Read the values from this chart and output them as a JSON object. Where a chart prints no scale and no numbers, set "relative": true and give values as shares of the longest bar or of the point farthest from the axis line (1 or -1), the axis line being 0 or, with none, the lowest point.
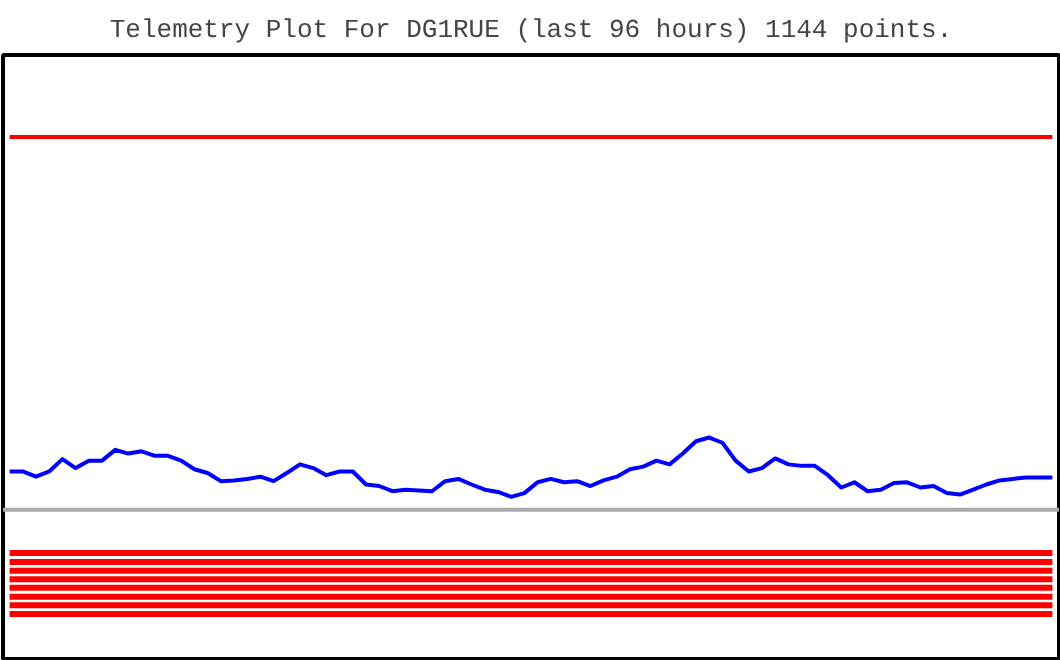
{
  "chart_data": {
    "type": "line",
    "title": "Telemetry Plot For DG1RUE (last 96 hours) 1144 points.",
    "relative": true,
    "grid": false,
    "categories": [
      null,
      null,
      null,
      null,
      null,
      null,
      null,
      null,
      null,
      null,
      null,
      null,
      null,
      null,
      null,
      null,
      null,
      null,
      null,
      null,
      null,
      null,
      null,
      null,
      null,
      null,
      null,
      null,
      null,
      null,
      null,
      null,
      null,
      null,
      null,
      null,
      null,
      null,
      null,
      null,
      null,
      null,
      null,
      null,
      null,
      null,
      null,
      null,
      null,
      null,
      null,
      null,
      null,
      null,
      null,
      null,
      null,
      null,
      null,
      null,
      null,
      null,
      null,
      null,
      null,
      null,
      null,
      null,
      null,
      null,
      null,
      null,
      null,
      null,
      null,
      null,
      null,
      null,
      null,
      null
    ],
    "series": [
      {
        "color": "#0000ff",
        "values": [
          0.103,
          0.103,
          0.089,
          0.103,
          0.136,
          0.112,
          0.132,
          0.132,
          0.161,
          0.151,
          0.157,
          0.145,
          0.145,
          0.132,
          0.109,
          0.099,
          0.077,
          0.079,
          0.083,
          0.089,
          0.077,
          0.099,
          0.122,
          0.112,
          0.093,
          0.103,
          0.103,
          0.068,
          0.064,
          0.05,
          0.054,
          0.052,
          0.05,
          0.077,
          0.083,
          0.068,
          0.054,
          0.048,
          0.035,
          0.045,
          0.074,
          0.083,
          0.074,
          0.077,
          0.064,
          0.079,
          0.089,
          0.109,
          0.116,
          0.132,
          0.122,
          0.151,
          0.184,
          0.194,
          0.18,
          0.132,
          0.103,
          0.112,
          0.138,
          0.122,
          0.118,
          0.118,
          0.093,
          0.06,
          0.074,
          0.05,
          0.054,
          0.072,
          0.074,
          0.06,
          0.064,
          0.045,
          0.041,
          0.054,
          0.068,
          0.079,
          0.083,
          0.087,
          0.087,
          0.087
        ]
      },
      {
        "color": "#ff0000",
        "values": [
          1,
          1,
          1,
          1,
          1,
          1,
          1,
          1,
          1,
          1,
          1,
          1,
          1,
          1,
          1,
          1,
          1,
          1,
          1,
          1,
          1,
          1,
          1,
          1,
          1,
          1,
          1,
          1,
          1,
          1,
          1,
          1,
          1,
          1,
          1,
          1,
          1,
          1,
          1,
          1,
          1,
          1,
          1,
          1,
          1,
          1,
          1,
          1,
          1,
          1,
          1,
          1,
          1,
          1,
          1,
          1,
          1,
          1,
          1,
          1,
          1,
          1,
          1,
          1,
          1,
          1,
          1,
          1,
          1,
          1,
          1,
          1,
          1,
          1,
          1,
          1,
          1,
          1,
          1,
          1
        ]
      },
      {
        "color": "#ff0000",
        "values": [
          -0.116,
          -0.116,
          -0.116,
          -0.116,
          -0.116,
          -0.116,
          -0.116,
          -0.116,
          -0.116,
          -0.116,
          -0.116,
          -0.116,
          -0.116,
          -0.116,
          -0.116,
          -0.116,
          -0.116,
          -0.116,
          -0.116,
          -0.116,
          -0.116,
          -0.116,
          -0.116,
          -0.116,
          -0.116,
          -0.116,
          -0.116,
          -0.116,
          -0.116,
          -0.116,
          -0.116,
          -0.116,
          -0.116,
          -0.116,
          -0.116,
          -0.116,
          -0.116,
          -0.116,
          -0.116,
          -0.116,
          -0.116,
          -0.116,
          -0.116,
          -0.116,
          -0.116,
          -0.116,
          -0.116,
          -0.116,
          -0.116,
          -0.116,
          -0.116,
          -0.116,
          -0.116,
          -0.116,
          -0.116,
          -0.116,
          -0.116,
          -0.116,
          -0.116,
          -0.116,
          -0.116,
          -0.116,
          -0.116,
          -0.116,
          -0.116,
          -0.116,
          -0.116,
          -0.116,
          -0.116,
          -0.116,
          -0.116,
          -0.116,
          -0.116,
          -0.116,
          -0.116,
          -0.116,
          -0.116,
          -0.116,
          -0.116,
          -0.116
        ]
      },
      {
        "color": "#ff0000",
        "values": [
          -0.14,
          -0.14,
          -0.14,
          -0.14,
          -0.14,
          -0.14,
          -0.14,
          -0.14,
          -0.14,
          -0.14,
          -0.14,
          -0.14,
          -0.14,
          -0.14,
          -0.14,
          -0.14,
          -0.14,
          -0.14,
          -0.14,
          -0.14,
          -0.14,
          -0.14,
          -0.14,
          -0.14,
          -0.14,
          -0.14,
          -0.14,
          -0.14,
          -0.14,
          -0.14,
          -0.14,
          -0.14,
          -0.14,
          -0.14,
          -0.14,
          -0.14,
          -0.14,
          -0.14,
          -0.14,
          -0.14,
          -0.14,
          -0.14,
          -0.14,
          -0.14,
          -0.14,
          -0.14,
          -0.14,
          -0.14,
          -0.14,
          -0.14,
          -0.14,
          -0.14,
          -0.14,
          -0.14,
          -0.14,
          -0.14,
          -0.14,
          -0.14,
          -0.14,
          -0.14,
          -0.14,
          -0.14,
          -0.14,
          -0.14,
          -0.14,
          -0.14,
          -0.14,
          -0.14,
          -0.14,
          -0.14,
          -0.14,
          -0.14,
          -0.14,
          -0.14,
          -0.14,
          -0.14,
          -0.14,
          -0.14,
          -0.14,
          -0.14
        ]
      },
      {
        "color": "#ff0000",
        "values": [
          -0.163,
          -0.163,
          -0.163,
          -0.163,
          -0.163,
          -0.163,
          -0.163,
          -0.163,
          -0.163,
          -0.163,
          -0.163,
          -0.163,
          -0.163,
          -0.163,
          -0.163,
          -0.163,
          -0.163,
          -0.163,
          -0.163,
          -0.163,
          -0.163,
          -0.163,
          -0.163,
          -0.163,
          -0.163,
          -0.163,
          -0.163,
          -0.163,
          -0.163,
          -0.163,
          -0.163,
          -0.163,
          -0.163,
          -0.163,
          -0.163,
          -0.163,
          -0.163,
          -0.163,
          -0.163,
          -0.163,
          -0.163,
          -0.163,
          -0.163,
          -0.163,
          -0.163,
          -0.163,
          -0.163,
          -0.163,
          -0.163,
          -0.163,
          -0.163,
          -0.163,
          -0.163,
          -0.163,
          -0.163,
          -0.163,
          -0.163,
          -0.163,
          -0.163,
          -0.163,
          -0.163,
          -0.163,
          -0.163,
          -0.163,
          -0.163,
          -0.163,
          -0.163,
          -0.163,
          -0.163,
          -0.163,
          -0.163,
          -0.163,
          -0.163,
          -0.163,
          -0.163,
          -0.163,
          -0.163,
          -0.163,
          -0.163,
          -0.163
        ]
      },
      {
        "color": "#ff0000",
        "values": [
          -0.186,
          -0.186,
          -0.186,
          -0.186,
          -0.186,
          -0.186,
          -0.186,
          -0.186,
          -0.186,
          -0.186,
          -0.186,
          -0.186,
          -0.186,
          -0.186,
          -0.186,
          -0.186,
          -0.186,
          -0.186,
          -0.186,
          -0.186,
          -0.186,
          -0.186,
          -0.186,
          -0.186,
          -0.186,
          -0.186,
          -0.186,
          -0.186,
          -0.186,
          -0.186,
          -0.186,
          -0.186,
          -0.186,
          -0.186,
          -0.186,
          -0.186,
          -0.186,
          -0.186,
          -0.186,
          -0.186,
          -0.186,
          -0.186,
          -0.186,
          -0.186,
          -0.186,
          -0.186,
          -0.186,
          -0.186,
          -0.186,
          -0.186,
          -0.186,
          -0.186,
          -0.186,
          -0.186,
          -0.186,
          -0.186,
          -0.186,
          -0.186,
          -0.186,
          -0.186,
          -0.186,
          -0.186,
          -0.186,
          -0.186,
          -0.186,
          -0.186,
          -0.186,
          -0.186,
          -0.186,
          -0.186,
          -0.186,
          -0.186,
          -0.186,
          -0.186,
          -0.186,
          -0.186,
          -0.186,
          -0.186,
          -0.186,
          -0.186
        ]
      },
      {
        "color": "#ff0000",
        "values": [
          -0.209,
          -0.209,
          -0.209,
          -0.209,
          -0.209,
          -0.209,
          -0.209,
          -0.209,
          -0.209,
          -0.209,
          -0.209,
          -0.209,
          -0.209,
          -0.209,
          -0.209,
          -0.209,
          -0.209,
          -0.209,
          -0.209,
          -0.209,
          -0.209,
          -0.209,
          -0.209,
          -0.209,
          -0.209,
          -0.209,
          -0.209,
          -0.209,
          -0.209,
          -0.209,
          -0.209,
          -0.209,
          -0.209,
          -0.209,
          -0.209,
          -0.209,
          -0.209,
          -0.209,
          -0.209,
          -0.209,
          -0.209,
          -0.209,
          -0.209,
          -0.209,
          -0.209,
          -0.209,
          -0.209,
          -0.209,
          -0.209,
          -0.209,
          -0.209,
          -0.209,
          -0.209,
          -0.209,
          -0.209,
          -0.209,
          -0.209,
          -0.209,
          -0.209,
          -0.209,
          -0.209,
          -0.209,
          -0.209,
          -0.209,
          -0.209,
          -0.209,
          -0.209,
          -0.209,
          -0.209,
          -0.209,
          -0.209,
          -0.209,
          -0.209,
          -0.209,
          -0.209,
          -0.209,
          -0.209,
          -0.209,
          -0.209,
          -0.209
        ]
      },
      {
        "color": "#ff0000",
        "values": [
          -0.233,
          -0.233,
          -0.233,
          -0.233,
          -0.233,
          -0.233,
          -0.233,
          -0.233,
          -0.233,
          -0.233,
          -0.233,
          -0.233,
          -0.233,
          -0.233,
          -0.233,
          -0.233,
          -0.233,
          -0.233,
          -0.233,
          -0.233,
          -0.233,
          -0.233,
          -0.233,
          -0.233,
          -0.233,
          -0.233,
          -0.233,
          -0.233,
          -0.233,
          -0.233,
          -0.233,
          -0.233,
          -0.233,
          -0.233,
          -0.233,
          -0.233,
          -0.233,
          -0.233,
          -0.233,
          -0.233,
          -0.233,
          -0.233,
          -0.233,
          -0.233,
          -0.233,
          -0.233,
          -0.233,
          -0.233,
          -0.233,
          -0.233,
          -0.233,
          -0.233,
          -0.233,
          -0.233,
          -0.233,
          -0.233,
          -0.233,
          -0.233,
          -0.233,
          -0.233,
          -0.233,
          -0.233,
          -0.233,
          -0.233,
          -0.233,
          -0.233,
          -0.233,
          -0.233,
          -0.233,
          -0.233,
          -0.233,
          -0.233,
          -0.233,
          -0.233,
          -0.233,
          -0.233,
          -0.233,
          -0.233,
          -0.233,
          -0.233
        ]
      },
      {
        "color": "#ff0000",
        "values": [
          -0.256,
          -0.256,
          -0.256,
          -0.256,
          -0.256,
          -0.256,
          -0.256,
          -0.256,
          -0.256,
          -0.256,
          -0.256,
          -0.256,
          -0.256,
          -0.256,
          -0.256,
          -0.256,
          -0.256,
          -0.256,
          -0.256,
          -0.256,
          -0.256,
          -0.256,
          -0.256,
          -0.256,
          -0.256,
          -0.256,
          -0.256,
          -0.256,
          -0.256,
          -0.256,
          -0.256,
          -0.256,
          -0.256,
          -0.256,
          -0.256,
          -0.256,
          -0.256,
          -0.256,
          -0.256,
          -0.256,
          -0.256,
          -0.256,
          -0.256,
          -0.256,
          -0.256,
          -0.256,
          -0.256,
          -0.256,
          -0.256,
          -0.256,
          -0.256,
          -0.256,
          -0.256,
          -0.256,
          -0.256,
          -0.256,
          -0.256,
          -0.256,
          -0.256,
          -0.256,
          -0.256,
          -0.256,
          -0.256,
          -0.256,
          -0.256,
          -0.256,
          -0.256,
          -0.256,
          -0.256,
          -0.256,
          -0.256,
          -0.256,
          -0.256,
          -0.256,
          -0.256,
          -0.256,
          -0.256,
          -0.256,
          -0.256,
          -0.256
        ]
      },
      {
        "color": "#ff0000",
        "values": [
          -0.279,
          -0.279,
          -0.279,
          -0.279,
          -0.279,
          -0.279,
          -0.279,
          -0.279,
          -0.279,
          -0.279,
          -0.279,
          -0.279,
          -0.279,
          -0.279,
          -0.279,
          -0.279,
          -0.279,
          -0.279,
          -0.279,
          -0.279,
          -0.279,
          -0.279,
          -0.279,
          -0.279,
          -0.279,
          -0.279,
          -0.279,
          -0.279,
          -0.279,
          -0.279,
          -0.279,
          -0.279,
          -0.279,
          -0.279,
          -0.279,
          -0.279,
          -0.279,
          -0.279,
          -0.279,
          -0.279,
          -0.279,
          -0.279,
          -0.279,
          -0.279,
          -0.279,
          -0.279,
          -0.279,
          -0.279,
          -0.279,
          -0.279,
          -0.279,
          -0.279,
          -0.279,
          -0.279,
          -0.279,
          -0.279,
          -0.279,
          -0.279,
          -0.279,
          -0.279,
          -0.279,
          -0.279,
          -0.279,
          -0.279,
          -0.279,
          -0.279,
          -0.279,
          -0.279,
          -0.279,
          -0.279,
          -0.279,
          -0.279,
          -0.279,
          -0.279,
          -0.279,
          -0.279,
          -0.279,
          -0.279,
          -0.279,
          -0.279
        ]
      }
    ]
  }
}
